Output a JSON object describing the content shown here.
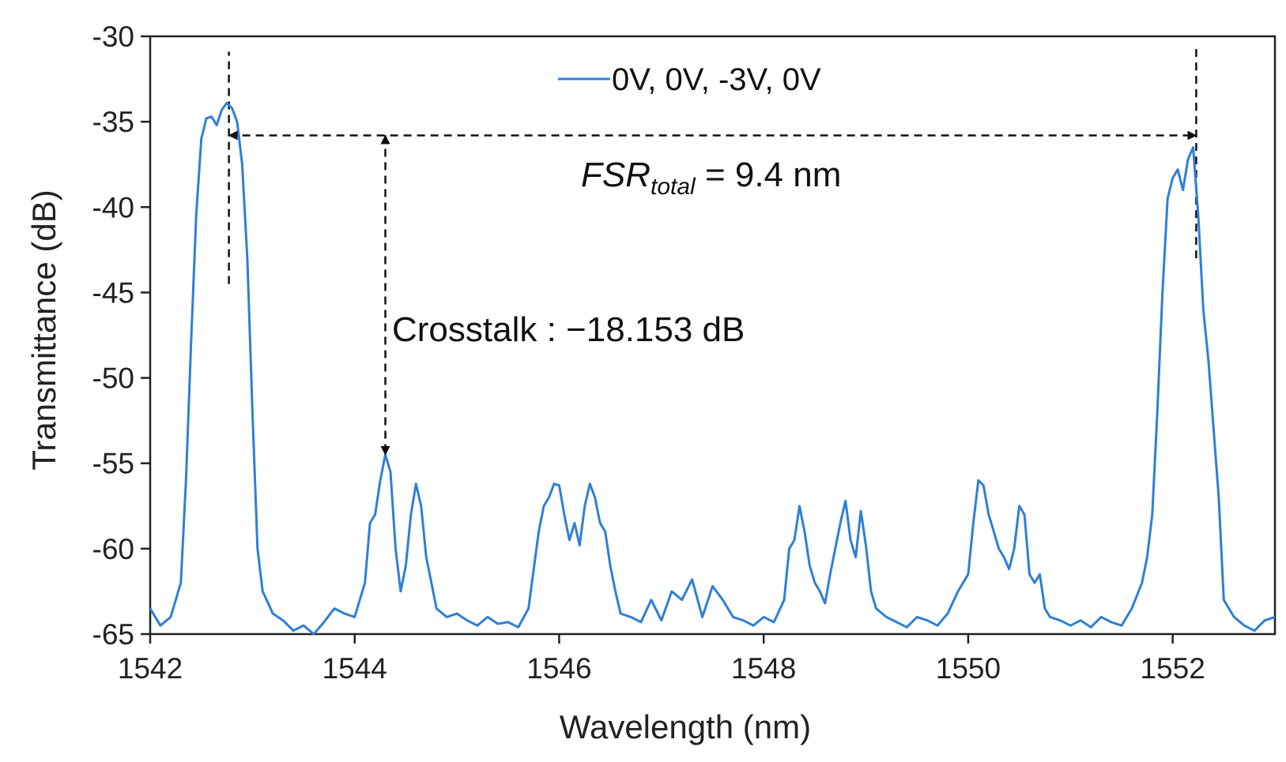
{
  "chart_data": {
    "type": "line",
    "title": "",
    "xlabel": "Wavelength  (nm)",
    "ylabel": "Transmittance  (dB)",
    "xlim": [
      1542,
      1553
    ],
    "ylim": [
      -65,
      -30
    ],
    "xticks": [
      1542,
      1544,
      1546,
      1548,
      1550,
      1552
    ],
    "yticks": [
      -30,
      -35,
      -40,
      -45,
      -50,
      -55,
      -60,
      -65
    ],
    "xtick_labels": [
      "1542",
      "1544",
      "1546",
      "1548",
      "1550",
      "1552"
    ],
    "ytick_labels": [
      "-30",
      "-35",
      "-40",
      "-45",
      "-50",
      "-55",
      "-60",
      "-65"
    ],
    "legend_position": "top-center",
    "colors": {
      "series": "#2f7fd6",
      "annotation": "#111111",
      "axis": "#222222"
    },
    "series": [
      {
        "name": "0V, 0V, -3V, 0V",
        "x": [
          1542.0,
          1542.1,
          1542.2,
          1542.3,
          1542.35,
          1542.4,
          1542.45,
          1542.5,
          1542.55,
          1542.6,
          1542.65,
          1542.7,
          1542.75,
          1542.8,
          1542.85,
          1542.9,
          1542.95,
          1543.0,
          1543.05,
          1543.1,
          1543.2,
          1543.3,
          1543.4,
          1543.5,
          1543.6,
          1543.7,
          1543.8,
          1543.9,
          1544.0,
          1544.1,
          1544.15,
          1544.2,
          1544.25,
          1544.3,
          1544.35,
          1544.4,
          1544.45,
          1544.5,
          1544.55,
          1544.6,
          1544.65,
          1544.7,
          1544.75,
          1544.8,
          1544.9,
          1545.0,
          1545.1,
          1545.2,
          1545.3,
          1545.4,
          1545.5,
          1545.6,
          1545.7,
          1545.8,
          1545.85,
          1545.9,
          1545.95,
          1546.0,
          1546.05,
          1546.1,
          1546.15,
          1546.2,
          1546.25,
          1546.3,
          1546.35,
          1546.4,
          1546.45,
          1546.5,
          1546.55,
          1546.6,
          1546.7,
          1546.8,
          1546.9,
          1547.0,
          1547.1,
          1547.2,
          1547.3,
          1547.4,
          1547.5,
          1547.6,
          1547.7,
          1547.8,
          1547.9,
          1548.0,
          1548.1,
          1548.2,
          1548.25,
          1548.3,
          1548.35,
          1548.4,
          1548.45,
          1548.5,
          1548.55,
          1548.6,
          1548.65,
          1548.7,
          1548.75,
          1548.8,
          1548.85,
          1548.9,
          1548.95,
          1549.0,
          1549.05,
          1549.1,
          1549.2,
          1549.3,
          1549.4,
          1549.5,
          1549.6,
          1549.7,
          1549.8,
          1549.9,
          1550.0,
          1550.05,
          1550.1,
          1550.15,
          1550.2,
          1550.25,
          1550.3,
          1550.35,
          1550.4,
          1550.45,
          1550.5,
          1550.55,
          1550.6,
          1550.65,
          1550.7,
          1550.75,
          1550.8,
          1550.9,
          1551.0,
          1551.1,
          1551.2,
          1551.3,
          1551.4,
          1551.5,
          1551.6,
          1551.7,
          1551.75,
          1551.8,
          1551.85,
          1551.9,
          1551.95,
          1552.0,
          1552.05,
          1552.1,
          1552.15,
          1552.2,
          1552.25,
          1552.3,
          1552.35,
          1552.4,
          1552.45,
          1552.5,
          1552.55,
          1552.6,
          1552.7,
          1552.8,
          1552.9,
          1553.0
        ],
        "y": [
          -63.5,
          -64.5,
          -64.0,
          -62.0,
          -56.0,
          -48.0,
          -40.5,
          -36.0,
          -34.8,
          -34.7,
          -35.2,
          -34.3,
          -33.9,
          -34.2,
          -35.0,
          -37.5,
          -43.0,
          -52.0,
          -60.0,
          -62.5,
          -63.8,
          -64.2,
          -64.8,
          -64.5,
          -65.0,
          -64.3,
          -63.5,
          -63.8,
          -64.0,
          -62.0,
          -58.5,
          -58.0,
          -56.0,
          -54.5,
          -55.5,
          -60.0,
          -62.5,
          -61.0,
          -58.0,
          -56.2,
          -57.5,
          -60.5,
          -62.0,
          -63.5,
          -64.0,
          -63.8,
          -64.2,
          -64.5,
          -64.0,
          -64.4,
          -64.3,
          -64.6,
          -63.5,
          -59.0,
          -57.5,
          -57.0,
          -56.2,
          -56.3,
          -58.0,
          -59.5,
          -58.5,
          -59.8,
          -57.5,
          -56.2,
          -57.0,
          -58.5,
          -59.0,
          -61.0,
          -62.5,
          -63.8,
          -64.0,
          -64.3,
          -63.0,
          -64.2,
          -62.5,
          -63.0,
          -61.8,
          -64.0,
          -62.2,
          -63.0,
          -64.0,
          -64.2,
          -64.5,
          -64.0,
          -64.3,
          -63.0,
          -60.0,
          -59.5,
          -57.5,
          -59.0,
          -61.0,
          -62.0,
          -62.5,
          -63.2,
          -61.5,
          -60.0,
          -58.5,
          -57.2,
          -59.5,
          -60.5,
          -57.8,
          -59.8,
          -62.5,
          -63.5,
          -64.0,
          -64.3,
          -64.6,
          -64.0,
          -64.2,
          -64.5,
          -63.8,
          -62.5,
          -61.5,
          -58.5,
          -56.0,
          -56.3,
          -58.0,
          -59.0,
          -60.0,
          -60.5,
          -61.2,
          -60.0,
          -57.5,
          -58.0,
          -61.5,
          -62.0,
          -61.5,
          -63.5,
          -64.0,
          -64.2,
          -64.5,
          -64.2,
          -64.6,
          -64.0,
          -64.3,
          -64.5,
          -63.5,
          -62.0,
          -60.5,
          -58.0,
          -52.0,
          -45.0,
          -39.5,
          -38.3,
          -37.8,
          -39.0,
          -37.2,
          -36.5,
          -40.5,
          -46.0,
          -49.0,
          -53.0,
          -57.0,
          -63.0,
          -63.5,
          -64.0,
          -64.5,
          -64.8,
          -64.2,
          -64.0
        ]
      }
    ],
    "reference_lines": [
      {
        "x": 1542.77,
        "y_from": -44.5,
        "y_to": -30.9
      },
      {
        "x": 1552.23,
        "y_from": -43.0,
        "y_to": -30.5
      }
    ],
    "annotations": {
      "fsr_arrow": {
        "x_from": 1542.77,
        "x_to": 1552.23,
        "y": -35.8
      },
      "fsr_label_main": "FSR",
      "fsr_label_sub": "total",
      "fsr_label_rest": " = 9.4 nm",
      "crosstalk_arrow": {
        "x": 1544.3,
        "y_from": -35.8,
        "y_to": -54.5
      },
      "crosstalk_label": "Crosstalk : −18.153 dB"
    }
  }
}
